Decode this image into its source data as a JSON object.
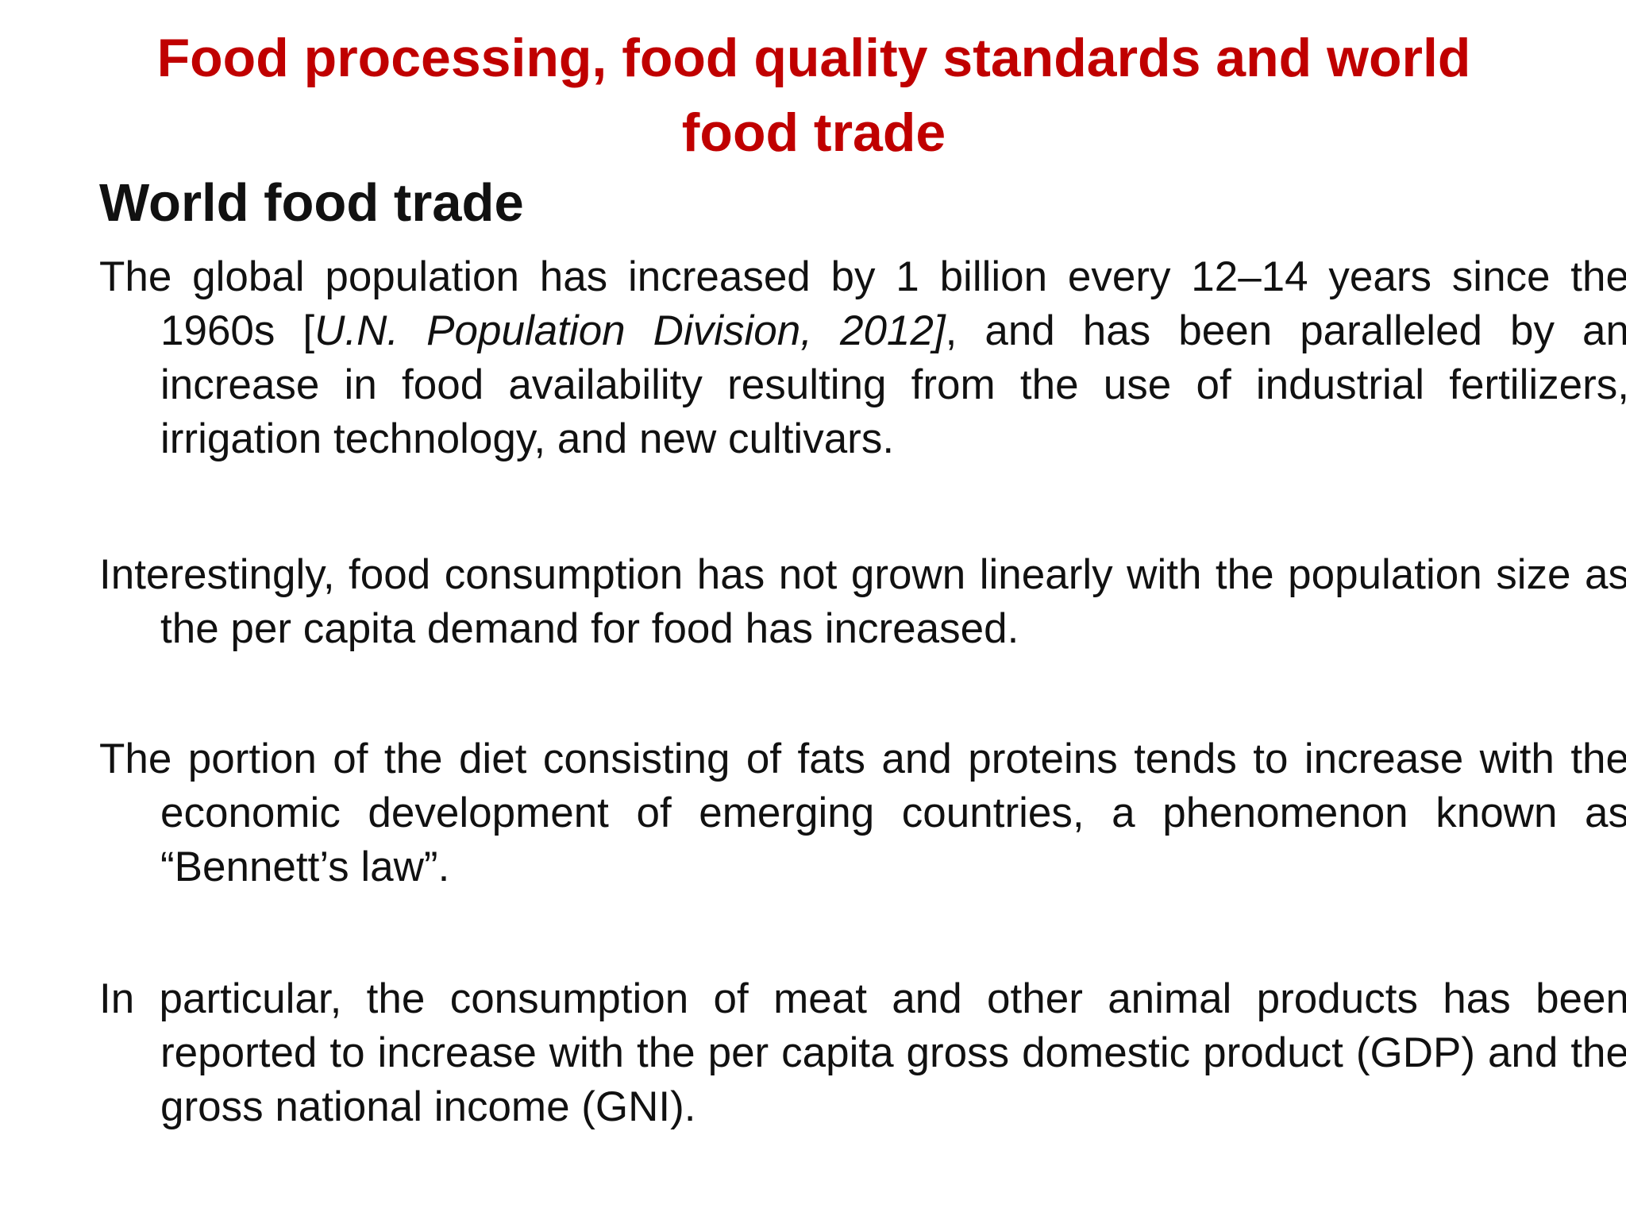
{
  "slide": {
    "title": "Food processing, food quality standards and  world food trade",
    "section_heading": "World food trade",
    "paragraphs": {
      "p1": {
        "before": "The global population has increased by 1 billion every 12–14 years since the 1960s [",
        "citation": "U.N. Population Division, 2012]",
        "after": ", and has been paralleled by an increase in food availability resulting from the use of industrial fertilizers, irrigation technology, and new cultivars."
      },
      "p2": "Interestingly, food consumption has not grown linearly with the population size as the per capita demand for food has increased.",
      "p3": "The portion of the diet consisting of fats and proteins tends to increase with the economic development of emerging countries, a phenomenon known as “Bennett’s law”.",
      "p4": "In particular, the consumption of meat and other animal products has been reported to increase with the per capita gross domestic product (GDP) and the gross national income (GNI)."
    }
  },
  "colors": {
    "title": "#c00000",
    "text": "#111111",
    "background": "#ffffff"
  }
}
